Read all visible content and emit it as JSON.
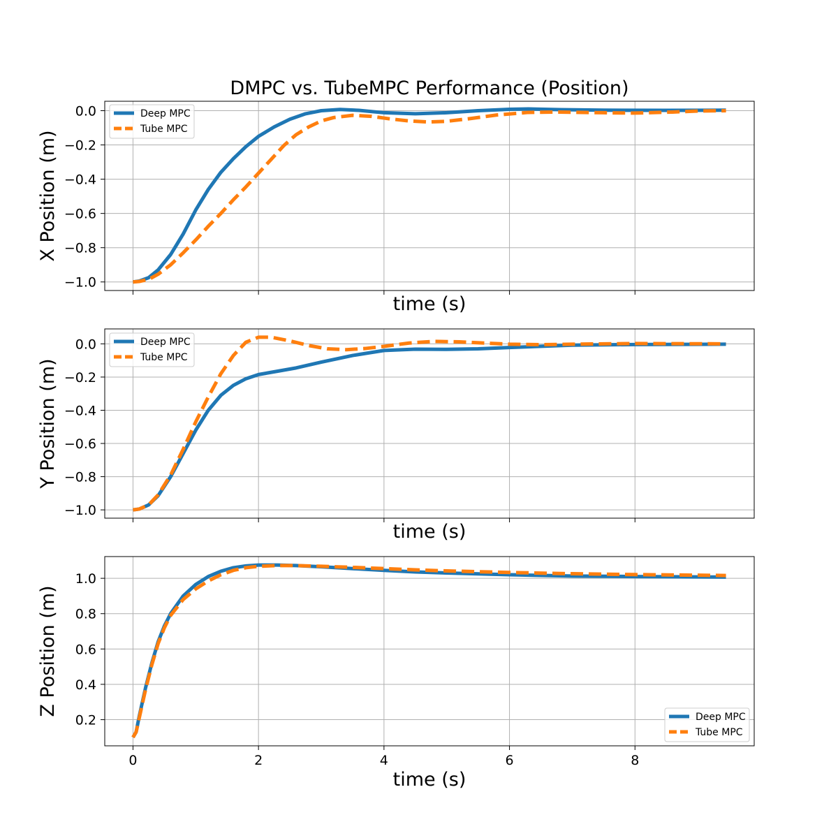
{
  "figure_title": "DMPC vs. TubeMPC Performance (Position)",
  "colors": {
    "deep": "#1f77b4",
    "tube": "#ff7f0e",
    "grid": "#b0b0b0",
    "axis": "#000000"
  },
  "chart_data": [
    {
      "type": "line",
      "title": "DMPC vs. TubeMPC Performance (Position)",
      "xlabel": "time (s)",
      "ylabel": "X Position (m)",
      "xlim": [
        -0.45,
        9.9
      ],
      "ylim": [
        -1.05,
        0.055
      ],
      "x_ticks": [
        0,
        2,
        4,
        6,
        8
      ],
      "x_tick_labels_visible": false,
      "y_ticks": [
        -1.0,
        -0.8,
        -0.6,
        -0.4,
        -0.2,
        0.0
      ],
      "y_tick_labels": [
        "−1.0",
        "−0.8",
        "−0.6",
        "−0.4",
        "−0.2",
        "0.0"
      ],
      "grid": true,
      "legend": "top-left",
      "series": [
        {
          "name": "Deep MPC",
          "style": "solid",
          "points": [
            [
              0,
              -1.0
            ],
            [
              0.1,
              -0.995
            ],
            [
              0.25,
              -0.975
            ],
            [
              0.4,
              -0.93
            ],
            [
              0.6,
              -0.84
            ],
            [
              0.8,
              -0.72
            ],
            [
              1.0,
              -0.58
            ],
            [
              1.2,
              -0.46
            ],
            [
              1.4,
              -0.36
            ],
            [
              1.6,
              -0.28
            ],
            [
              1.8,
              -0.21
            ],
            [
              2.0,
              -0.15
            ],
            [
              2.25,
              -0.095
            ],
            [
              2.5,
              -0.05
            ],
            [
              2.75,
              -0.018
            ],
            [
              3.0,
              0.0
            ],
            [
              3.3,
              0.007
            ],
            [
              3.6,
              0.002
            ],
            [
              4.0,
              -0.012
            ],
            [
              4.5,
              -0.018
            ],
            [
              5.0,
              -0.012
            ],
            [
              5.5,
              0.0
            ],
            [
              6.0,
              0.008
            ],
            [
              6.3,
              0.01
            ],
            [
              6.8,
              0.006
            ],
            [
              7.5,
              0.003
            ],
            [
              8.5,
              0.002
            ],
            [
              9.45,
              0.003
            ]
          ]
        },
        {
          "name": "Tube MPC",
          "style": "dashed",
          "points": [
            [
              0,
              -1.0
            ],
            [
              0.1,
              -0.997
            ],
            [
              0.25,
              -0.985
            ],
            [
              0.4,
              -0.955
            ],
            [
              0.6,
              -0.9
            ],
            [
              0.8,
              -0.83
            ],
            [
              1.0,
              -0.755
            ],
            [
              1.2,
              -0.675
            ],
            [
              1.4,
              -0.6
            ],
            [
              1.6,
              -0.52
            ],
            [
              1.8,
              -0.445
            ],
            [
              2.0,
              -0.365
            ],
            [
              2.2,
              -0.285
            ],
            [
              2.4,
              -0.205
            ],
            [
              2.6,
              -0.14
            ],
            [
              2.8,
              -0.095
            ],
            [
              3.0,
              -0.06
            ],
            [
              3.2,
              -0.04
            ],
            [
              3.5,
              -0.027
            ],
            [
              3.8,
              -0.033
            ],
            [
              4.1,
              -0.048
            ],
            [
              4.4,
              -0.06
            ],
            [
              4.7,
              -0.066
            ],
            [
              5.0,
              -0.062
            ],
            [
              5.4,
              -0.045
            ],
            [
              5.8,
              -0.025
            ],
            [
              6.3,
              -0.01
            ],
            [
              6.8,
              -0.008
            ],
            [
              7.5,
              -0.012
            ],
            [
              8.0,
              -0.014
            ],
            [
              8.6,
              -0.008
            ],
            [
              9.0,
              -0.002
            ],
            [
              9.45,
              0.0
            ]
          ]
        }
      ]
    },
    {
      "type": "line",
      "xlabel": "time (s)",
      "ylabel": "Y Position (m)",
      "xlim": [
        -0.45,
        9.9
      ],
      "ylim": [
        -1.05,
        0.09
      ],
      "x_ticks": [
        0,
        2,
        4,
        6,
        8
      ],
      "x_tick_labels_visible": false,
      "y_ticks": [
        -1.0,
        -0.8,
        -0.6,
        -0.4,
        -0.2,
        0.0
      ],
      "y_tick_labels": [
        "−1.0",
        "−0.8",
        "−0.6",
        "−0.4",
        "−0.2",
        "0.0"
      ],
      "grid": true,
      "legend": "top-left",
      "series": [
        {
          "name": "Deep MPC",
          "style": "solid",
          "points": [
            [
              0,
              -1.0
            ],
            [
              0.1,
              -0.995
            ],
            [
              0.25,
              -0.97
            ],
            [
              0.4,
              -0.915
            ],
            [
              0.6,
              -0.8
            ],
            [
              0.8,
              -0.66
            ],
            [
              1.0,
              -0.52
            ],
            [
              1.2,
              -0.4
            ],
            [
              1.4,
              -0.31
            ],
            [
              1.6,
              -0.25
            ],
            [
              1.8,
              -0.21
            ],
            [
              2.0,
              -0.185
            ],
            [
              2.3,
              -0.165
            ],
            [
              2.6,
              -0.145
            ],
            [
              3.0,
              -0.11
            ],
            [
              3.5,
              -0.07
            ],
            [
              4.0,
              -0.04
            ],
            [
              4.5,
              -0.032
            ],
            [
              5.0,
              -0.033
            ],
            [
              5.5,
              -0.03
            ],
            [
              6.0,
              -0.022
            ],
            [
              7.0,
              -0.008
            ],
            [
              8.0,
              -0.004
            ],
            [
              9.45,
              -0.002
            ]
          ]
        },
        {
          "name": "Tube MPC",
          "style": "dashed",
          "points": [
            [
              0,
              -1.0
            ],
            [
              0.1,
              -0.995
            ],
            [
              0.25,
              -0.97
            ],
            [
              0.4,
              -0.91
            ],
            [
              0.6,
              -0.79
            ],
            [
              0.8,
              -0.635
            ],
            [
              1.0,
              -0.47
            ],
            [
              1.2,
              -0.32
            ],
            [
              1.4,
              -0.18
            ],
            [
              1.6,
              -0.07
            ],
            [
              1.8,
              0.01
            ],
            [
              2.0,
              0.04
            ],
            [
              2.2,
              0.04
            ],
            [
              2.5,
              0.018
            ],
            [
              2.8,
              -0.01
            ],
            [
              3.1,
              -0.03
            ],
            [
              3.4,
              -0.035
            ],
            [
              3.7,
              -0.028
            ],
            [
              4.0,
              -0.015
            ],
            [
              4.4,
              0.005
            ],
            [
              4.8,
              0.015
            ],
            [
              5.2,
              0.012
            ],
            [
              5.6,
              0.005
            ],
            [
              6.0,
              -0.002
            ],
            [
              6.5,
              -0.005
            ],
            [
              7.0,
              -0.002
            ],
            [
              8.0,
              0.002
            ],
            [
              9.45,
              0.0
            ]
          ]
        }
      ]
    },
    {
      "type": "line",
      "xlabel": "time (s)",
      "ylabel": "Z Position (m)",
      "xlim": [
        -0.45,
        9.9
      ],
      "ylim": [
        0.052,
        1.123
      ],
      "x_ticks": [
        0,
        2,
        4,
        6,
        8
      ],
      "x_tick_labels": [
        "0",
        "2",
        "4",
        "6",
        "8"
      ],
      "x_tick_labels_visible": true,
      "y_ticks": [
        0.2,
        0.4,
        0.6,
        0.8,
        1.0
      ],
      "y_tick_labels": [
        "0.2",
        "0.4",
        "0.6",
        "0.8",
        "1.0"
      ],
      "grid": true,
      "legend": "bottom-right",
      "series": [
        {
          "name": "Deep MPC",
          "style": "solid",
          "points": [
            [
              0,
              0.1
            ],
            [
              0.05,
              0.13
            ],
            [
              0.1,
              0.22
            ],
            [
              0.15,
              0.3
            ],
            [
              0.2,
              0.38
            ],
            [
              0.3,
              0.52
            ],
            [
              0.4,
              0.64
            ],
            [
              0.5,
              0.73
            ],
            [
              0.6,
              0.8
            ],
            [
              0.8,
              0.9
            ],
            [
              1.0,
              0.965
            ],
            [
              1.2,
              1.01
            ],
            [
              1.4,
              1.04
            ],
            [
              1.6,
              1.06
            ],
            [
              1.8,
              1.07
            ],
            [
              2.0,
              1.075
            ],
            [
              2.3,
              1.075
            ],
            [
              2.6,
              1.072
            ],
            [
              3.0,
              1.065
            ],
            [
              3.5,
              1.055
            ],
            [
              4.0,
              1.045
            ],
            [
              4.5,
              1.036
            ],
            [
              5.0,
              1.03
            ],
            [
              5.5,
              1.025
            ],
            [
              6.0,
              1.02
            ],
            [
              7.0,
              1.013
            ],
            [
              8.0,
              1.01
            ],
            [
              9.45,
              1.007
            ]
          ]
        },
        {
          "name": "Tube MPC",
          "style": "dashed",
          "points": [
            [
              0,
              0.1
            ],
            [
              0.05,
              0.13
            ],
            [
              0.1,
              0.21
            ],
            [
              0.15,
              0.29
            ],
            [
              0.2,
              0.37
            ],
            [
              0.3,
              0.51
            ],
            [
              0.4,
              0.63
            ],
            [
              0.5,
              0.72
            ],
            [
              0.6,
              0.79
            ],
            [
              0.8,
              0.88
            ],
            [
              1.0,
              0.94
            ],
            [
              1.2,
              0.985
            ],
            [
              1.4,
              1.02
            ],
            [
              1.6,
              1.045
            ],
            [
              1.8,
              1.06
            ],
            [
              2.0,
              1.068
            ],
            [
              2.3,
              1.072
            ],
            [
              2.6,
              1.072
            ],
            [
              3.0,
              1.068
            ],
            [
              3.5,
              1.062
            ],
            [
              4.0,
              1.055
            ],
            [
              4.5,
              1.048
            ],
            [
              5.0,
              1.042
            ],
            [
              6.0,
              1.033
            ],
            [
              7.0,
              1.026
            ],
            [
              8.0,
              1.021
            ],
            [
              9.45,
              1.016
            ]
          ]
        }
      ]
    }
  ]
}
